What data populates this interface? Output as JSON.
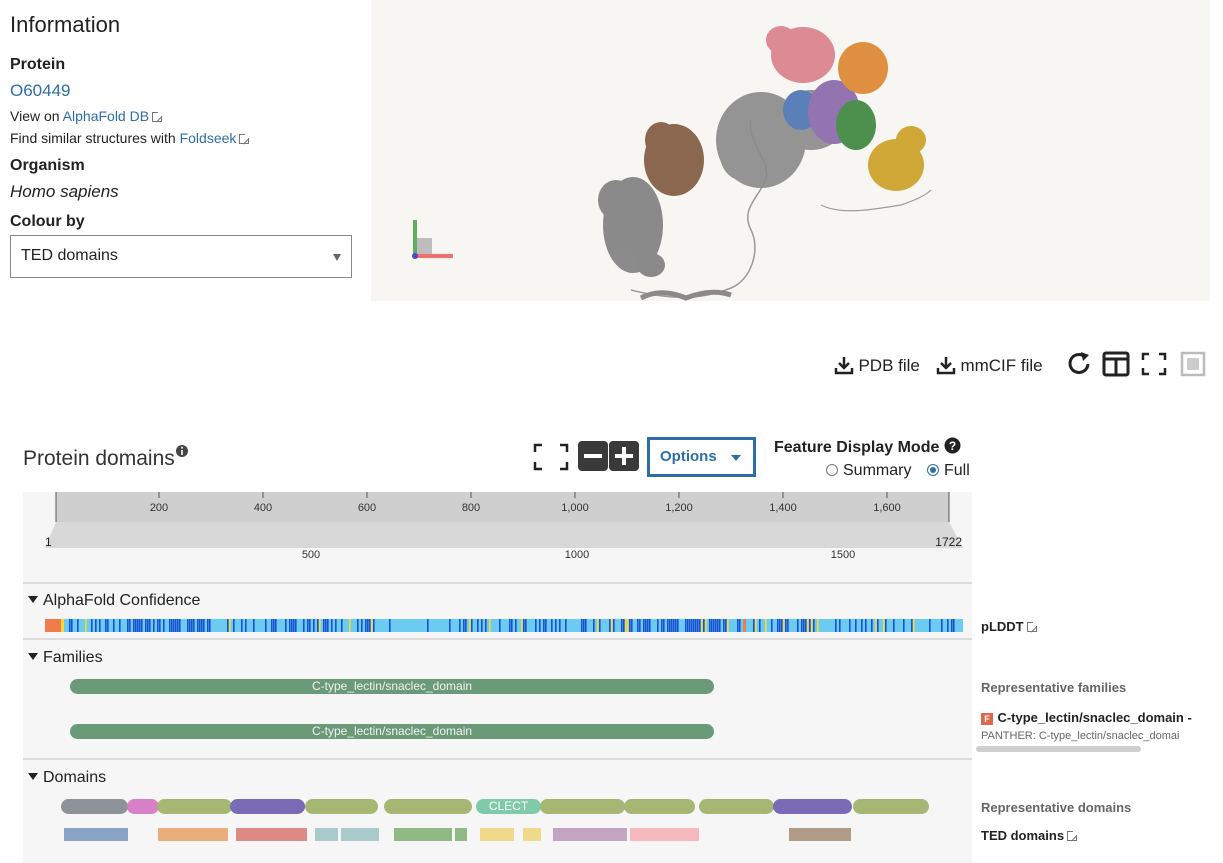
{
  "info": {
    "title": "Information",
    "protein_label": "Protein",
    "protein_id": "O60449",
    "view_on_prefix": "View on ",
    "view_on_link": "AlphaFold DB",
    "similar_prefix": "Find similar structures with ",
    "similar_link": "Foldseek",
    "organism_label": "Organism",
    "organism_value": "Homo sapiens",
    "colour_by_label": "Colour by",
    "colour_by_value": "TED domains"
  },
  "toolbar": {
    "pdb_label": "PDB file",
    "mmcif_label": "mmCIF file",
    "icons": [
      "download-icon",
      "download-icon",
      "reset-icon",
      "split-view-icon",
      "fullscreen-icon",
      "exit-fullscreen-icon"
    ]
  },
  "domains_header": {
    "title": "Protein domains",
    "options_label": "Options",
    "feature_mode_label": "Feature Display Mode",
    "summary_label": "Summary",
    "full_label": "Full",
    "selected_mode": "Full"
  },
  "ruler": {
    "top_ticks": [
      "200",
      "400",
      "600",
      "800",
      "1,000",
      "1,200",
      "1,400",
      "1,600"
    ],
    "start": "1",
    "end": "1722",
    "bottom_ticks": [
      "500",
      "1000",
      "1500"
    ]
  },
  "sections": {
    "confidence_title": "AlphaFold Confidence",
    "families_title": "Families",
    "domains_title": "Domains"
  },
  "families": {
    "bar1_label": "C-type_lectin/snaclec_domain",
    "bar2_label": "C-type_lectin/snaclec_domain"
  },
  "domains": {
    "clect_label": "CLECT"
  },
  "side": {
    "plddt_label": "pLDDT",
    "rep_families_label": "Representative families",
    "family_badge": "F",
    "family_name": "C-type_lectin/snaclec_domain -",
    "family_source": "PANTHER: C-type_lectin/snaclec_domai",
    "rep_domains_label": "Representative domains",
    "ted_label": "TED domains"
  },
  "colors": {
    "link": "#2d6ea8",
    "family_green": "#6a9a77",
    "plddt_very_high": "#1a53d1",
    "plddt_high": "#6ccbf0",
    "plddt_low": "#fed936",
    "plddt_very_low": "#ef7d4c"
  }
}
